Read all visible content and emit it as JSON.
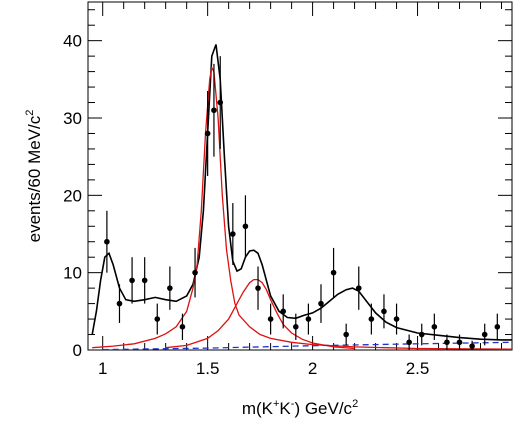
{
  "chart_data": {
    "type": "scatter",
    "xlabel_parts": [
      "m(K",
      "+",
      "K",
      "-",
      ") GeV/c",
      "2"
    ],
    "ylabel_parts": [
      "events/60 MeV/c",
      "2"
    ],
    "xlim": [
      0.93,
      2.95
    ],
    "ylim": [
      0,
      45
    ],
    "x_ticks": [
      1,
      1.5,
      2,
      2.5
    ],
    "x_tick_labels": [
      "1",
      "1.5",
      "2",
      "2.5"
    ],
    "y_ticks": [
      0,
      10,
      20,
      30,
      40
    ],
    "y_tick_labels": [
      "0",
      "10",
      "20",
      "30",
      "40"
    ],
    "grid": false,
    "data_points": {
      "x": [
        1.02,
        1.08,
        1.14,
        1.2,
        1.26,
        1.32,
        1.38,
        1.44,
        1.5,
        1.53,
        1.56,
        1.62,
        1.68,
        1.74,
        1.8,
        1.86,
        1.92,
        1.98,
        2.04,
        2.1,
        2.16,
        2.22,
        2.28,
        2.34,
        2.4,
        2.46,
        2.52,
        2.58,
        2.64,
        2.7,
        2.76,
        2.82,
        2.88
      ],
      "y": [
        14,
        6,
        9,
        9,
        4,
        8,
        3,
        10,
        28,
        31,
        32,
        15,
        16,
        8,
        4,
        5,
        3,
        4,
        6,
        10,
        2,
        8,
        4,
        5,
        4,
        1,
        2,
        3,
        1,
        1,
        0.5,
        2,
        3
      ],
      "err": [
        4,
        2.5,
        3,
        3,
        2,
        2.8,
        1.7,
        3.2,
        5.5,
        6,
        6,
        4,
        4,
        2.8,
        2,
        2.2,
        1.7,
        2,
        2.5,
        3.2,
        1.4,
        2.8,
        2,
        2.2,
        2,
        1,
        1.4,
        1.7,
        1,
        1,
        0.7,
        1.4,
        1.7
      ]
    },
    "series": [
      {
        "kind": "total_fit",
        "color": "#000000",
        "style": "solid",
        "x": [
          0.95,
          0.97,
          0.99,
          1.01,
          1.03,
          1.05,
          1.08,
          1.11,
          1.15,
          1.2,
          1.25,
          1.3,
          1.35,
          1.4,
          1.43,
          1.46,
          1.48,
          1.5,
          1.52,
          1.54,
          1.56,
          1.58,
          1.6,
          1.62,
          1.64,
          1.66,
          1.68,
          1.7,
          1.72,
          1.74,
          1.76,
          1.78,
          1.8,
          1.84,
          1.88,
          1.92,
          1.96,
          2.0,
          2.04,
          2.08,
          2.12,
          2.16,
          2.19,
          2.22,
          2.26,
          2.3,
          2.35,
          2.4,
          2.5,
          2.6,
          2.7,
          2.8,
          2.9,
          2.95
        ],
        "y": [
          2,
          5,
          9,
          12,
          12.5,
          11,
          8,
          6.5,
          6.3,
          6.5,
          6.8,
          6.5,
          6.3,
          7,
          8.5,
          12,
          18,
          28,
          38,
          39.5,
          35,
          25,
          16,
          11.5,
          10.2,
          10.5,
          12,
          12.8,
          12.9,
          12.5,
          11,
          9,
          7,
          5,
          4.2,
          4.1,
          4.5,
          4.8,
          5.4,
          6.3,
          7.2,
          7.8,
          8,
          7.6,
          6.2,
          4.8,
          3.6,
          2.9,
          2.2,
          1.9,
          1.6,
          1.4,
          1.3,
          1.3
        ]
      },
      {
        "kind": "component",
        "color": "#dd1111",
        "style": "solid",
        "x": [
          0.95,
          1.05,
          1.15,
          1.25,
          1.3,
          1.35,
          1.4,
          1.43,
          1.45,
          1.47,
          1.49,
          1.51,
          1.52,
          1.53,
          1.55,
          1.57,
          1.59,
          1.61,
          1.63,
          1.65,
          1.7,
          1.75,
          1.8,
          1.9,
          2.0,
          2.2,
          2.5,
          2.95
        ],
        "y": [
          0.3,
          0.5,
          0.8,
          1.5,
          2.1,
          3,
          5,
          8,
          11,
          18,
          28,
          35,
          36.5,
          36,
          30,
          20,
          13,
          9,
          6,
          4.5,
          3,
          2,
          1.5,
          1,
          0.7,
          0.4,
          0.2,
          0.1
        ]
      },
      {
        "kind": "component",
        "color": "#dd1111",
        "style": "solid",
        "x": [
          1.3,
          1.4,
          1.5,
          1.55,
          1.6,
          1.64,
          1.67,
          1.7,
          1.72,
          1.74,
          1.76,
          1.78,
          1.8,
          1.83,
          1.86,
          1.9,
          1.95,
          2.0,
          2.1,
          2.2
        ],
        "y": [
          0.3,
          0.6,
          1.5,
          2.5,
          4,
          6,
          7.5,
          8.7,
          9.1,
          9.1,
          8.7,
          7.8,
          6.5,
          4.8,
          3.3,
          2.2,
          1.4,
          0.9,
          0.4,
          0.2
        ]
      },
      {
        "kind": "background",
        "color": "#2233cc",
        "style": "dashed",
        "x": [
          1.0,
          1.5,
          2.0,
          2.5,
          2.95
        ],
        "y": [
          0.05,
          0.25,
          0.55,
          0.8,
          1.0
        ]
      }
    ]
  }
}
